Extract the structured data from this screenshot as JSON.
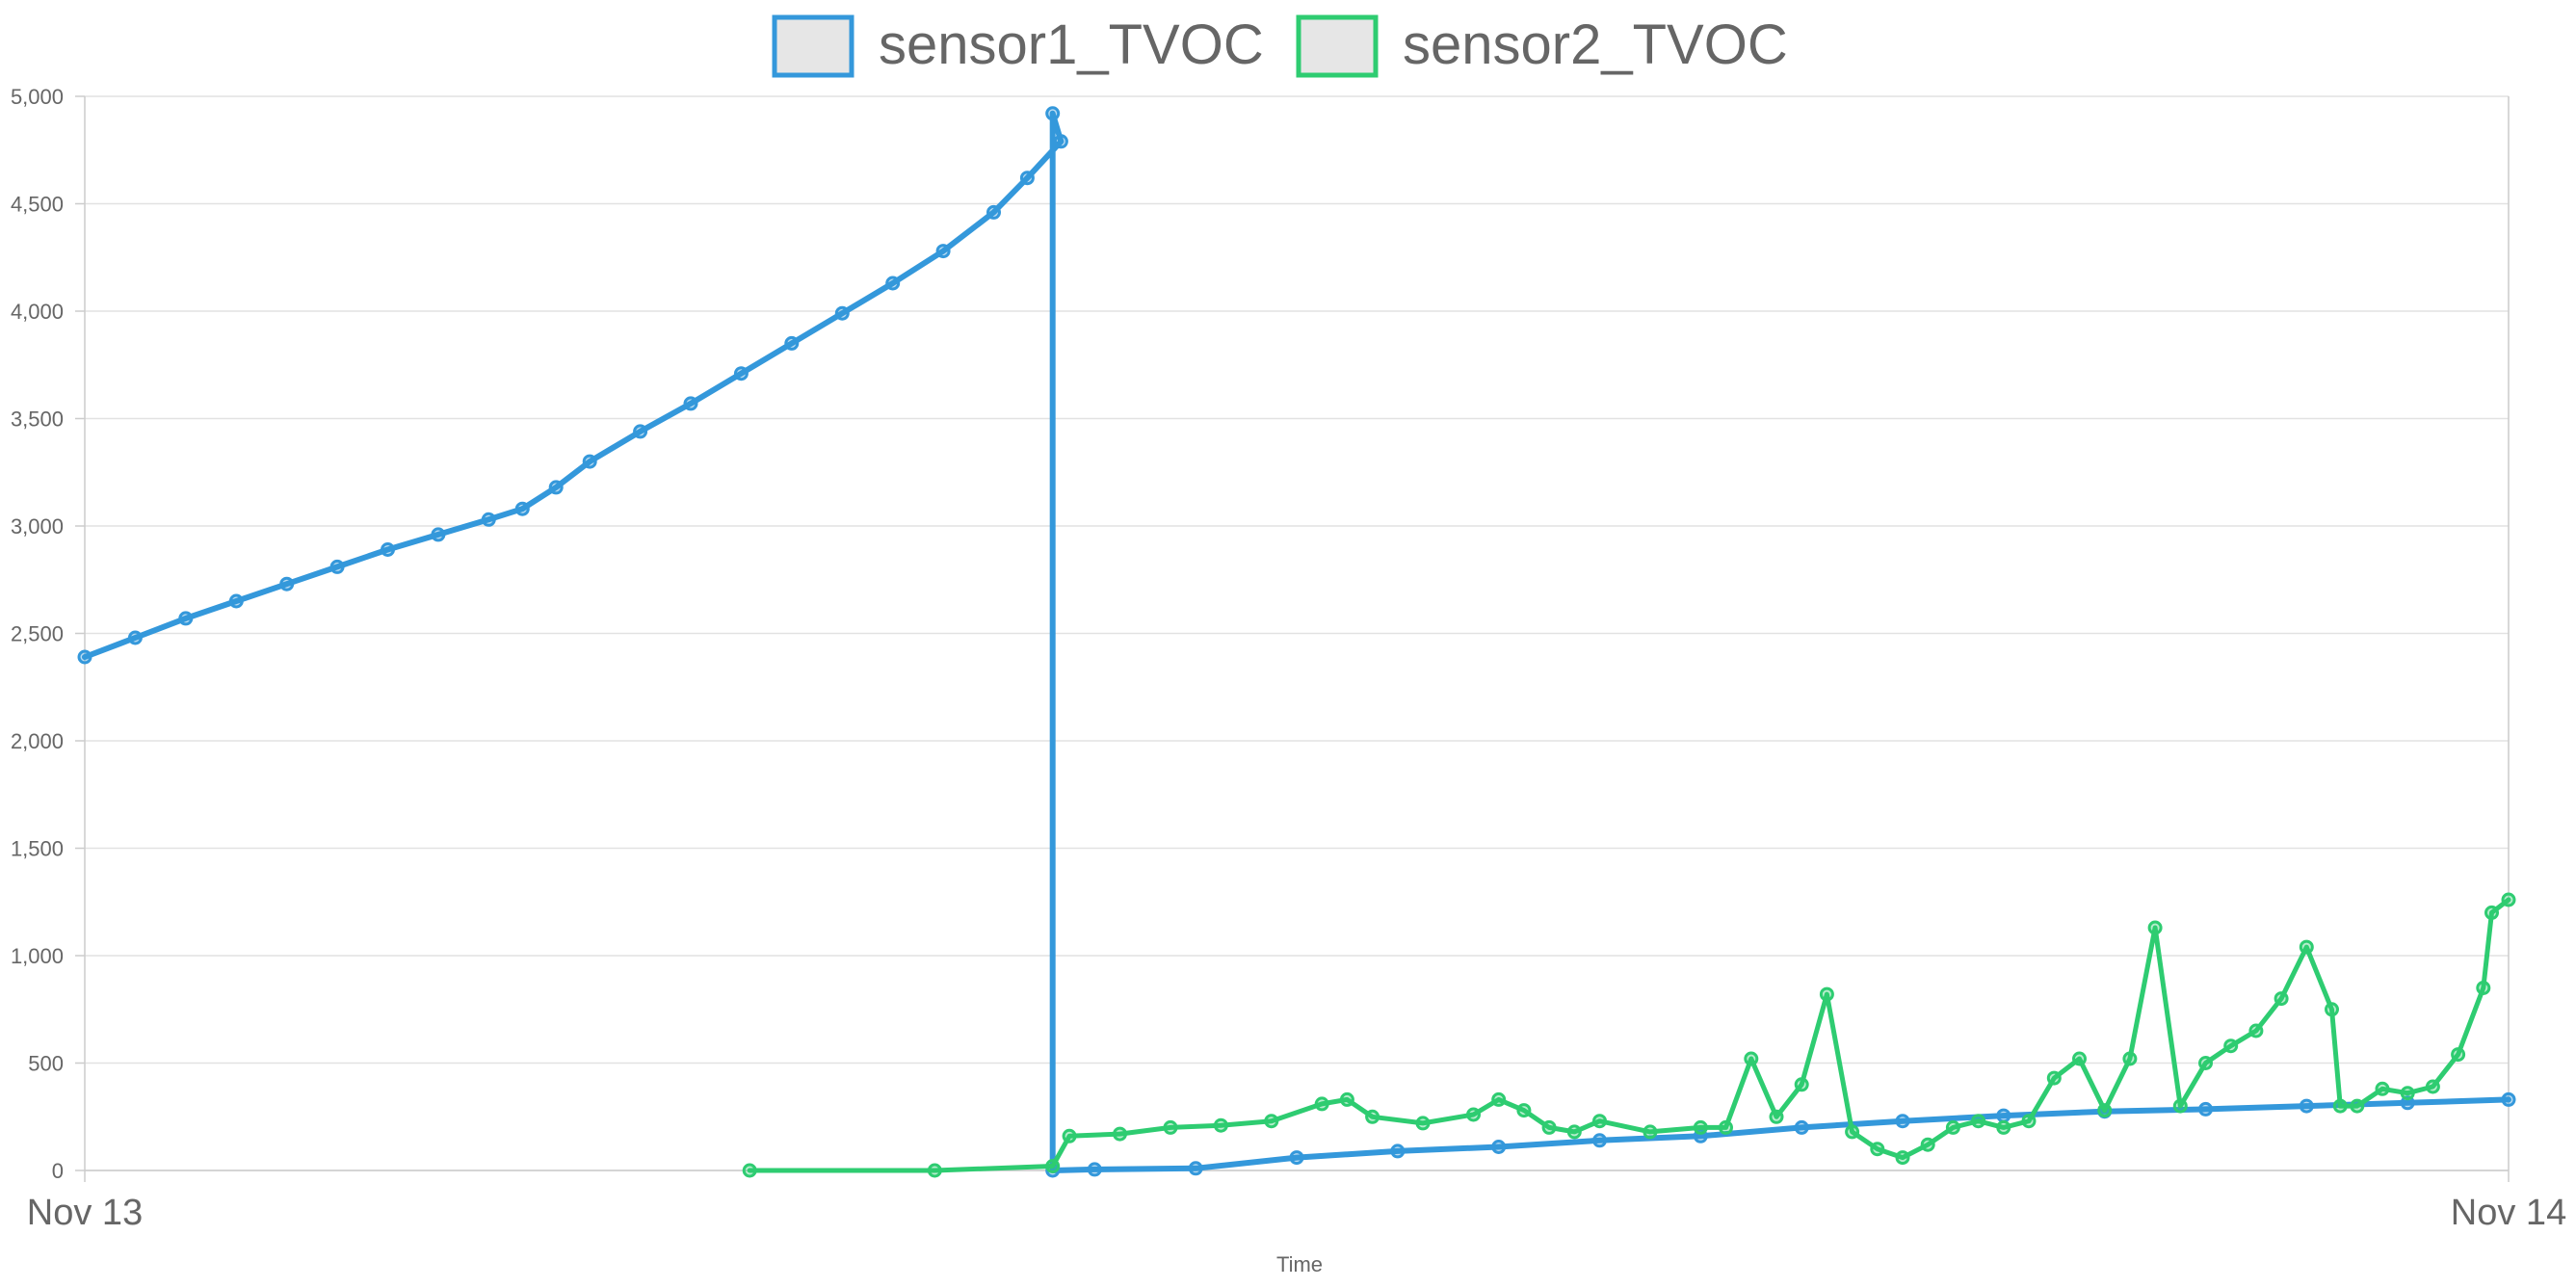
{
  "chart_data": {
    "type": "line",
    "title": "",
    "xlabel": "Time",
    "ylabel": "",
    "x_ticks": [
      "Nov 13",
      "Nov 14"
    ],
    "x_range": [
      "Nov 13 00:00",
      "Nov 14 00:00"
    ],
    "ylim": [
      0,
      5000
    ],
    "y_ticks": [
      0,
      500,
      1000,
      1500,
      2000,
      2500,
      3000,
      3500,
      4000,
      4500,
      5000
    ],
    "y_tick_labels": [
      "0",
      "500",
      "1,000",
      "1,500",
      "2,000",
      "2,500",
      "3,000",
      "3,500",
      "4,000",
      "4,500",
      "5,000"
    ],
    "grid": true,
    "legend_position": "top-center",
    "series": [
      {
        "name": "sensor1_TVOC",
        "color": "#3498db",
        "points": [
          [
            "00:00",
            2390
          ],
          [
            "00:30",
            2480
          ],
          [
            "01:00",
            2570
          ],
          [
            "01:30",
            2650
          ],
          [
            "02:00",
            2730
          ],
          [
            "02:30",
            2810
          ],
          [
            "03:00",
            2890
          ],
          [
            "03:30",
            2960
          ],
          [
            "04:00",
            3030
          ],
          [
            "04:20",
            3080
          ],
          [
            "04:40",
            3180
          ],
          [
            "05:00",
            3300
          ],
          [
            "05:30",
            3440
          ],
          [
            "06:00",
            3570
          ],
          [
            "06:30",
            3710
          ],
          [
            "07:00",
            3850
          ],
          [
            "07:30",
            3990
          ],
          [
            "08:00",
            4130
          ],
          [
            "08:30",
            4280
          ],
          [
            "09:00",
            4460
          ],
          [
            "09:20",
            4620
          ],
          [
            "09:40",
            4790
          ],
          [
            "09:35",
            4920
          ],
          [
            "09:35",
            0
          ],
          [
            "10:00",
            5
          ],
          [
            "11:00",
            10
          ],
          [
            "12:00",
            60
          ],
          [
            "13:00",
            90
          ],
          [
            "14:00",
            110
          ],
          [
            "15:00",
            140
          ],
          [
            "16:00",
            160
          ],
          [
            "17:00",
            200
          ],
          [
            "18:00",
            230
          ],
          [
            "19:00",
            255
          ],
          [
            "20:00",
            275
          ],
          [
            "21:00",
            285
          ],
          [
            "22:00",
            300
          ],
          [
            "23:00",
            315
          ],
          [
            "24:00",
            330
          ]
        ]
      },
      {
        "name": "sensor2_TVOC",
        "color": "#2ecc71",
        "points": [
          [
            "06:35",
            0
          ],
          [
            "08:25",
            0
          ],
          [
            "09:35",
            20
          ],
          [
            "09:45",
            160
          ],
          [
            "10:15",
            170
          ],
          [
            "10:45",
            200
          ],
          [
            "11:15",
            210
          ],
          [
            "11:45",
            230
          ],
          [
            "12:15",
            310
          ],
          [
            "12:30",
            330
          ],
          [
            "12:45",
            250
          ],
          [
            "13:15",
            220
          ],
          [
            "13:45",
            260
          ],
          [
            "14:00",
            330
          ],
          [
            "14:15",
            280
          ],
          [
            "14:30",
            200
          ],
          [
            "14:45",
            180
          ],
          [
            "15:00",
            230
          ],
          [
            "15:30",
            180
          ],
          [
            "16:00",
            200
          ],
          [
            "16:15",
            200
          ],
          [
            "16:30",
            520
          ],
          [
            "16:45",
            250
          ],
          [
            "17:00",
            400
          ],
          [
            "17:15",
            820
          ],
          [
            "17:30",
            180
          ],
          [
            "17:45",
            100
          ],
          [
            "18:00",
            60
          ],
          [
            "18:15",
            120
          ],
          [
            "18:30",
            200
          ],
          [
            "18:45",
            230
          ],
          [
            "19:00",
            200
          ],
          [
            "19:15",
            230
          ],
          [
            "19:30",
            430
          ],
          [
            "19:45",
            520
          ],
          [
            "20:00",
            280
          ],
          [
            "20:15",
            520
          ],
          [
            "20:30",
            1130
          ],
          [
            "20:45",
            300
          ],
          [
            "21:00",
            500
          ],
          [
            "21:15",
            580
          ],
          [
            "21:30",
            650
          ],
          [
            "21:45",
            800
          ],
          [
            "22:00",
            1040
          ],
          [
            "22:15",
            750
          ],
          [
            "22:20",
            300
          ],
          [
            "22:30",
            300
          ],
          [
            "22:45",
            380
          ],
          [
            "23:00",
            360
          ],
          [
            "23:15",
            390
          ],
          [
            "23:30",
            540
          ],
          [
            "23:45",
            850
          ],
          [
            "23:50",
            1200
          ],
          [
            "24:00",
            1260
          ]
        ]
      }
    ]
  }
}
